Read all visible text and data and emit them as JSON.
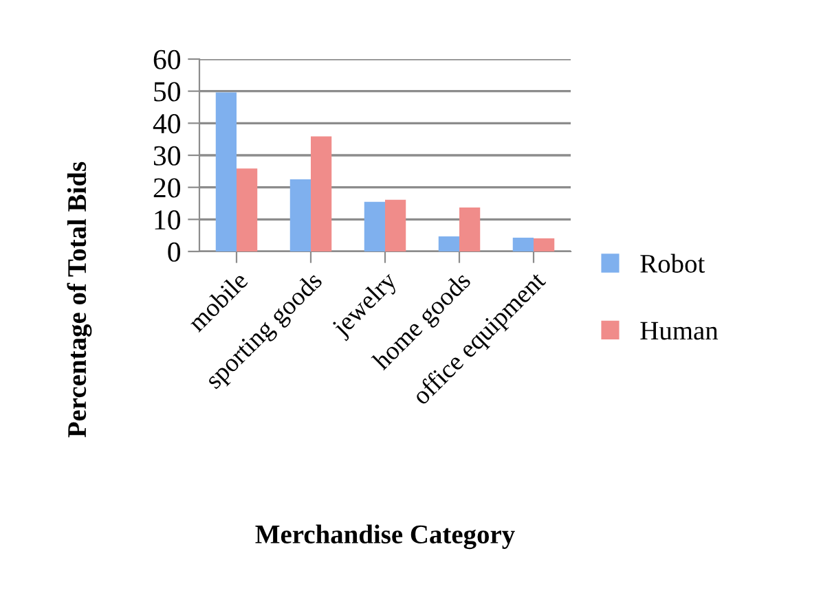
{
  "chart_data": {
    "type": "bar",
    "categories": [
      "mobile",
      "sporting goods",
      "jewelry",
      "home goods",
      "office equipment"
    ],
    "series": [
      {
        "name": "Robot",
        "color": "#7fb0ee",
        "values": [
          49.6,
          22.5,
          15.5,
          4.7,
          4.3
        ]
      },
      {
        "name": "Human",
        "color": "#f08c8a",
        "values": [
          25.9,
          35.9,
          16.1,
          13.7,
          4.1
        ]
      }
    ],
    "xlabel": "Merchandise Category",
    "ylabel": "Percentage of Total Bids",
    "ylim": [
      0,
      60
    ],
    "yticks": [
      0,
      10,
      20,
      30,
      40,
      50,
      60
    ],
    "grid": "y",
    "legend": "right"
  }
}
